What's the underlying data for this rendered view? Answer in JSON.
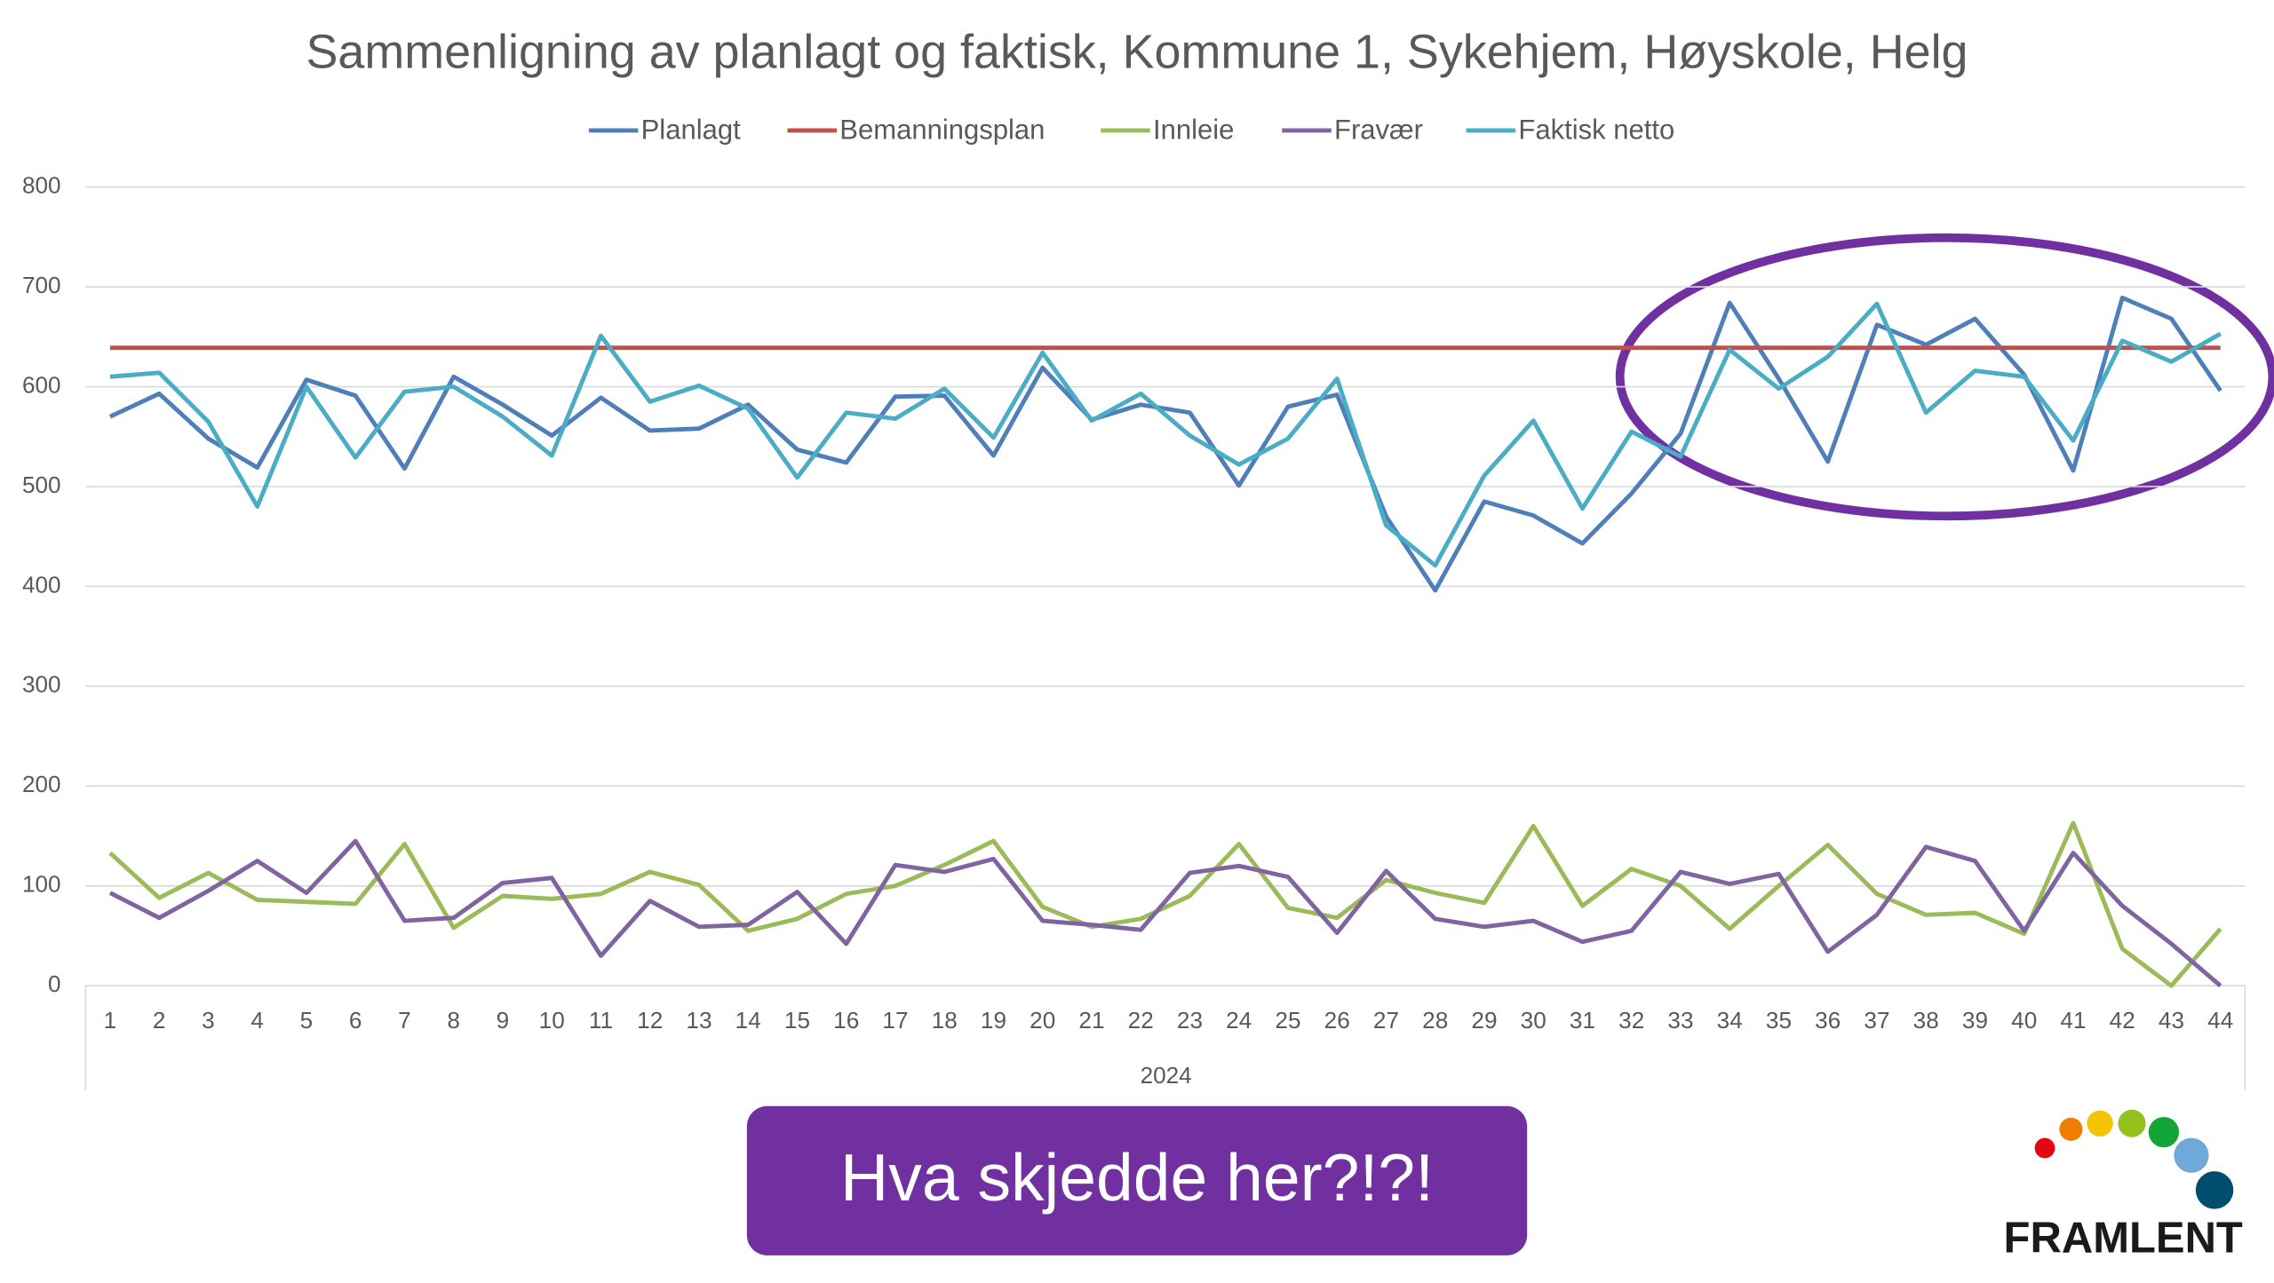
{
  "chart_data": {
    "type": "line",
    "title": "Sammenligning av planlagt og faktisk, Kommune 1, Sykehjem, Høyskole, Helg",
    "x_group_label": "2024",
    "categories": [
      "1",
      "2",
      "3",
      "4",
      "5",
      "6",
      "7",
      "8",
      "9",
      "10",
      "11",
      "12",
      "13",
      "14",
      "15",
      "16",
      "17",
      "18",
      "19",
      "20",
      "21",
      "22",
      "23",
      "24",
      "25",
      "26",
      "27",
      "28",
      "29",
      "30",
      "31",
      "32",
      "33",
      "34",
      "35",
      "36",
      "37",
      "38",
      "39",
      "40",
      "41",
      "42",
      "43",
      "44"
    ],
    "series": [
      {
        "name": "Planlagt",
        "color": "#4f7fb8",
        "values": [
          570,
          593,
          548,
          519,
          607,
          591,
          518,
          610,
          582,
          551,
          589,
          556,
          558,
          582,
          537,
          524,
          590,
          591,
          531,
          619,
          567,
          582,
          574,
          501,
          580,
          592,
          470,
          396,
          485,
          471,
          443,
          493,
          553,
          684,
          608,
          525,
          662,
          642,
          668,
          612,
          516,
          689,
          668,
          596
        ]
      },
      {
        "name": "Bemanningsplan",
        "color": "#c0504d",
        "values": [
          639,
          639,
          639,
          639,
          639,
          639,
          639,
          639,
          639,
          639,
          639,
          639,
          639,
          639,
          639,
          639,
          639,
          639,
          639,
          639,
          639,
          639,
          639,
          639,
          639,
          639,
          639,
          639,
          639,
          639,
          639,
          639,
          639,
          639,
          639,
          639,
          639,
          639,
          639,
          639,
          639,
          639,
          639,
          639
        ]
      },
      {
        "name": "Innleie",
        "color": "#9bbb59",
        "values": [
          133,
          88,
          113,
          86,
          84,
          82,
          142,
          58,
          90,
          87,
          92,
          114,
          101,
          55,
          67,
          92,
          100,
          121,
          145,
          79,
          59,
          67,
          90,
          142,
          78,
          68,
          106,
          93,
          83,
          160,
          80,
          117,
          100,
          57,
          100,
          141,
          92,
          71,
          73,
          52,
          163,
          37,
          0,
          57
        ]
      },
      {
        "name": "Fravær",
        "color": "#8064a2",
        "values": [
          93,
          68,
          95,
          125,
          93,
          145,
          65,
          68,
          103,
          108,
          30,
          85,
          59,
          61,
          94,
          42,
          121,
          114,
          127,
          65,
          61,
          56,
          113,
          120,
          109,
          53,
          115,
          67,
          59,
          65,
          44,
          55,
          114,
          102,
          112,
          34,
          71,
          139,
          125,
          55,
          133,
          80,
          42,
          0
        ]
      },
      {
        "name": "Faktisk netto",
        "color": "#4bacc6",
        "values": [
          610,
          614,
          565,
          480,
          600,
          529,
          595,
          600,
          570,
          531,
          651,
          585,
          601,
          578,
          509,
          574,
          568,
          598,
          549,
          634,
          566,
          593,
          551,
          522,
          548,
          608,
          461,
          421,
          511,
          566,
          478,
          555,
          530,
          637,
          598,
          630,
          683,
          574,
          616,
          610,
          546,
          646,
          625,
          653
        ]
      }
    ],
    "ylim": [
      0,
      800
    ],
    "yticks": [
      0,
      100,
      200,
      300,
      400,
      500,
      600,
      700,
      800
    ],
    "grid": true,
    "legend": "top",
    "annotation": "Hva skjedde her?!?!",
    "logo": "FRAMLENT"
  }
}
